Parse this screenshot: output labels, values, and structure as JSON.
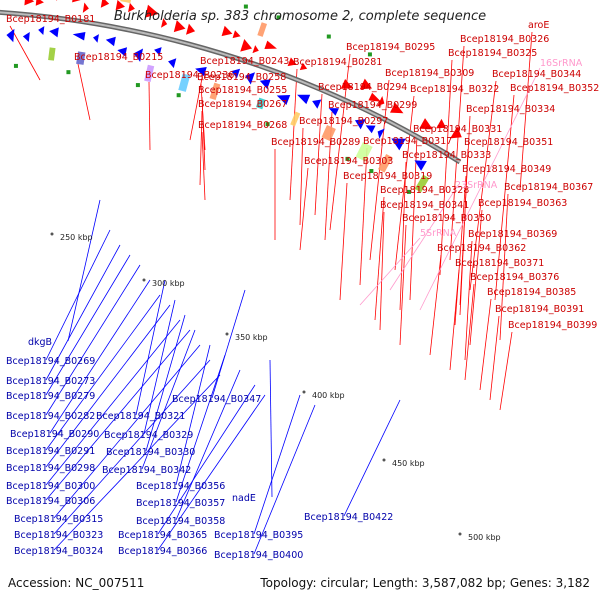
{
  "title": "Burkholderia sp. 383 chromosome 2, complete sequence",
  "accession": "Accession: NC_007511",
  "summary": "Topology: circular; Length: 3,587,082 bp; Genes: 3,182",
  "colors": {
    "forward": "#ff0000",
    "reverse": "#0000ff",
    "rna": "#ff99cc",
    "backbone": "#888888",
    "tick": "#555555"
  },
  "scale_ticks": [
    "250 kbp",
    "300 kbp",
    "350 kbp",
    "400 kbp",
    "450 kbp",
    "500 kbp"
  ],
  "forward_labels": [
    "Bcep18194_B0181",
    "Bcep18194_B0215",
    "Bcep18194_B0243",
    "Bcep18194_B0236",
    "Bcep18194_B0258",
    "Bcep18194_B0255",
    "Bcep18194_B0267",
    "Bcep18194_B0268",
    "Bcep18194_B0295",
    "Bcep18194_B0281",
    "Bcep18194_B0294",
    "Bcep18194_B0299",
    "Bcep18194_B0297",
    "Bcep18194_B0289",
    "Bcep18194_B0303",
    "Bcep18194_B0309",
    "Bcep18194_B0322",
    "Bcep18194_B0326",
    "Bcep18194_B0325",
    "Bcep18194_B0344",
    "Bcep18194_B0352",
    "Bcep18194_B0334",
    "Bcep18194_B0331",
    "Bcep18194_B0317",
    "Bcep18194_B0351",
    "Bcep18194_B0333",
    "Bcep18194_B0319",
    "Bcep18194_B0349",
    "Bcep18194_B0328",
    "Bcep18194_B0367",
    "Bcep18194_B0341",
    "Bcep18194_B0363",
    "Bcep18194_B0350",
    "Bcep18194_B0369",
    "Bcep18194_B0362",
    "Bcep18194_B0371",
    "Bcep18194_B0376",
    "Bcep18194_B0385",
    "Bcep18194_B0391",
    "Bcep18194_B0399",
    "aroE"
  ],
  "rna_labels": [
    "16SrRNA",
    "23SrRNA",
    "5SrRNA"
  ],
  "reverse_labels": [
    "dkgB",
    "Bcep18194_B0269",
    "Bcep18194_B0273",
    "Bcep18194_B0279",
    "Bcep18194_B0282",
    "Bcep18194_B0321",
    "Bcep18194_B0347",
    "Bcep18194_B0290",
    "Bcep18194_B0329",
    "Bcep18194_B0291",
    "Bcep18194_B0330",
    "Bcep18194_B0298",
    "Bcep18194_B0342",
    "Bcep18194_B0300",
    "Bcep18194_B0356",
    "Bcep18194_B0306",
    "Bcep18194_B0357",
    "nadE",
    "Bcep18194_B0315",
    "Bcep18194_B0358",
    "Bcep18194_B0422",
    "Bcep18194_B0323",
    "Bcep18194_B0365",
    "Bcep18194_B0395",
    "Bcep18194_B0324",
    "Bcep18194_B0366",
    "Bcep18194_B0400"
  ]
}
